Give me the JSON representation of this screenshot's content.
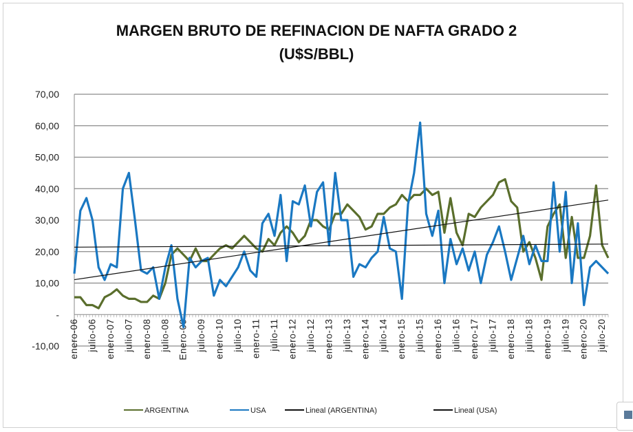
{
  "chart_data": {
    "type": "line",
    "title_line1": "MARGEN BRUTO DE REFINACION DE NAFTA GRADO 2",
    "title_line2": "(U$S/BBL)",
    "ylim": [
      -10,
      70
    ],
    "yticks": [
      "70,00",
      "60,00",
      "50,00",
      "40,00",
      "30,00",
      "20,00",
      "10,00",
      "-",
      "-10,00"
    ],
    "ytick_values": [
      70,
      60,
      50,
      40,
      30,
      20,
      10,
      0,
      -10
    ],
    "xlabels": [
      "enero-06",
      "julio-06",
      "enero-07",
      "julio-07",
      "enero-08",
      "julio-08",
      "Enero-09",
      "julio-09",
      "enero-10",
      "julio-10",
      "enero-11",
      "julio-11",
      "enero-12",
      "julio-12",
      "enero-13",
      "julio-13",
      "enero-14",
      "julio-14",
      "enero-15",
      "julio-15",
      "enero-16",
      "julio-16",
      "enero-17",
      "julio-17",
      "enero-18",
      "julio-18",
      "enero-19",
      "julio-19",
      "enero-20",
      "julio-20"
    ],
    "x_step_months": 2,
    "grid": true,
    "legend_position": "bottom",
    "series": [
      {
        "name": "ARGENTINA",
        "color": "#5a6e2c",
        "values": [
          5.5,
          5.5,
          3,
          3,
          2,
          5.5,
          6.5,
          8,
          6,
          5,
          5,
          4,
          4,
          6,
          5,
          10,
          19,
          21,
          19,
          17,
          21,
          17,
          17,
          19,
          21,
          22,
          21,
          23,
          25,
          23,
          21,
          20,
          24,
          22,
          26,
          28,
          26,
          23,
          25,
          30,
          30,
          28,
          27,
          32,
          32,
          35,
          33,
          31,
          27,
          28,
          32,
          32,
          34,
          35,
          38,
          36,
          38,
          38,
          40,
          38,
          39,
          26,
          37,
          26,
          22,
          32,
          31,
          34,
          36,
          38,
          42,
          43,
          36,
          34,
          20,
          23,
          18,
          11,
          28,
          32,
          35,
          18,
          31,
          18,
          18,
          25,
          41,
          22,
          18
        ]
      },
      {
        "name": "USA",
        "color": "#1a78c2",
        "values": [
          13,
          33,
          37,
          30,
          15,
          11,
          16,
          15,
          40,
          45,
          30,
          14,
          13,
          15,
          5,
          15,
          22,
          5,
          -4,
          18,
          15,
          17,
          18,
          6,
          11,
          9,
          12,
          15,
          20,
          14,
          12,
          29,
          32,
          25,
          38,
          17,
          36,
          35,
          41,
          28,
          39,
          42,
          22,
          45,
          30,
          30,
          12,
          16,
          15,
          18,
          20,
          31,
          21,
          20,
          5,
          35,
          45,
          61,
          32,
          25,
          33,
          10,
          24,
          16,
          21,
          14,
          20,
          10,
          19,
          23,
          28,
          20,
          11,
          18,
          25,
          16,
          22,
          17,
          17,
          42,
          20,
          39,
          10,
          29,
          3,
          15,
          17,
          15,
          13
        ]
      }
    ],
    "trendlines": [
      {
        "name": "Lineal (ARGENTINA)",
        "of": "ARGENTINA",
        "color": "#111111"
      },
      {
        "name": "Lineal (USA)",
        "of": "USA",
        "color": "#111111"
      }
    ]
  }
}
